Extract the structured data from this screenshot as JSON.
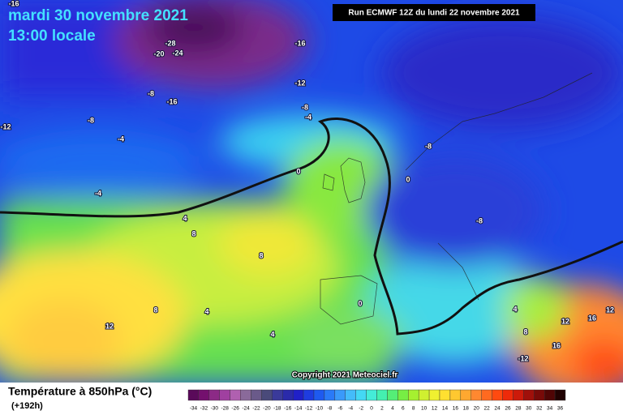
{
  "header": {
    "date": "mardi 30 novembre 2021",
    "time": "13:00 locale",
    "run": "Run ECMWF 12Z du lundi 22 novembre 2021",
    "copyright": "Copyright 2021 Meteociel.fr"
  },
  "map": {
    "contour_labels": [
      -16,
      -28,
      -20,
      -24,
      -16,
      -12,
      -8,
      -16,
      -8,
      -4,
      -8,
      -12,
      -4,
      -8,
      0,
      0,
      -4,
      4,
      -8,
      8,
      8,
      8,
      4,
      0,
      4,
      12,
      12,
      16,
      12,
      4,
      8,
      16,
      -12
    ]
  },
  "legend": {
    "title": "Température à 850hPa (°C)",
    "lead": "(+192h)",
    "ticks": [
      -34,
      -32,
      -30,
      -28,
      -26,
      -24,
      -22,
      -20,
      -18,
      -16,
      -14,
      -12,
      -10,
      -8,
      -6,
      -4,
      -2,
      0,
      2,
      4,
      6,
      8,
      10,
      12,
      14,
      16,
      18,
      20,
      22,
      24,
      26,
      28,
      30,
      32,
      34,
      36
    ],
    "colors": [
      "#5a0a5a",
      "#74106e",
      "#8c2a86",
      "#a040a0",
      "#b060b0",
      "#8a6a9a",
      "#6a5a8a",
      "#4a4a7a",
      "#3a3a9a",
      "#2a2aaa",
      "#2020c8",
      "#1e3ce0",
      "#1e5af0",
      "#2a7af8",
      "#3a9afa",
      "#44bcfa",
      "#44d8f4",
      "#44ecd8",
      "#44f0b0",
      "#55ee77",
      "#77ee44",
      "#a6f030",
      "#d0f030",
      "#f0f030",
      "#ffe030",
      "#ffc830",
      "#ffa830",
      "#ff8830",
      "#ff6a20",
      "#ff4a10",
      "#ee2a0a",
      "#cc1a0a",
      "#a0100a",
      "#780a08",
      "#500505",
      "#200202"
    ]
  }
}
